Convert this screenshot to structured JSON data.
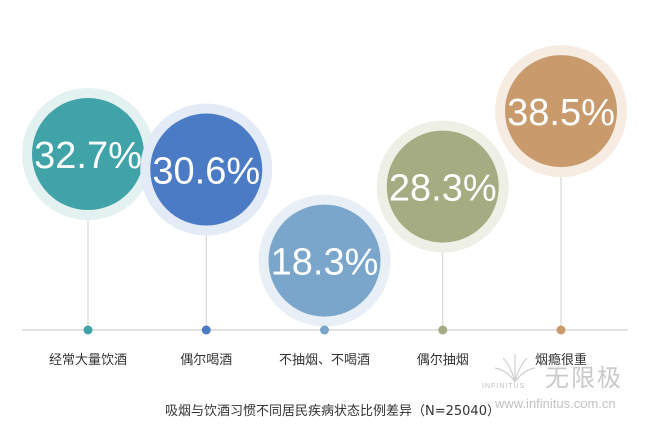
{
  "chart_data": {
    "type": "bubble",
    "title": "",
    "categories": [
      "经常大量饮酒",
      "偶尔喝酒",
      "不抽烟、不喝酒",
      "偶尔抽烟",
      "烟瘾很重"
    ],
    "values": [
      "32.7%",
      "30.6%",
      "18.3%",
      "28.3%",
      "38.5%"
    ],
    "numeric_values": [
      32.7,
      30.6,
      18.3,
      28.3,
      38.5
    ],
    "unit": "%",
    "colors": [
      "#3fa3a8",
      "#4a7bc4",
      "#7ba6cc",
      "#a5ac82",
      "#c99a6c"
    ],
    "halo_colors": [
      "#e3f1f1",
      "#e2ebf6",
      "#e8eff6",
      "#eef0e6",
      "#f6ece2"
    ],
    "axis_color": "#d8d8d8",
    "caption": "吸烟与饮酒习惯不同居民疾病状态比例差异（N=25040）",
    "legend": "none",
    "grid": false
  },
  "watermark": {
    "brand": "无限极",
    "brand_en": "INFINITUS",
    "url": "www.infinitus.com.cn"
  }
}
